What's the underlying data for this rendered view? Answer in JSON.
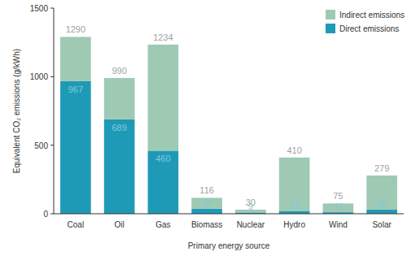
{
  "chart_data": {
    "type": "bar",
    "stacked": true,
    "x_label": "Primary energy source",
    "y_label": "Equivalent CO₂ emissions (g/kWh)",
    "categories": [
      "Coal",
      "Oil",
      "Gas",
      "Biomass",
      "Nuclear",
      "Hydro",
      "Wind",
      "Solar"
    ],
    "series": [
      {
        "name": "Direct emissions",
        "color": "#1f9ab6",
        "data_labels": true,
        "values": [
          967,
          689,
          460,
          37,
          9,
          18,
          11,
          30
        ]
      },
      {
        "name": "Indirect emissions",
        "color": "#9ec9b3",
        "data_labels": false,
        "values": [
          323,
          301,
          774,
          79,
          21,
          392,
          64,
          249
        ]
      }
    ],
    "totals": [
      1290,
      990,
      1234,
      116,
      30,
      410,
      75,
      279
    ],
    "ylim": [
      0,
      1500
    ],
    "yticks": [
      0,
      500,
      1000,
      1500
    ],
    "grid": false,
    "legend": "upper right"
  }
}
